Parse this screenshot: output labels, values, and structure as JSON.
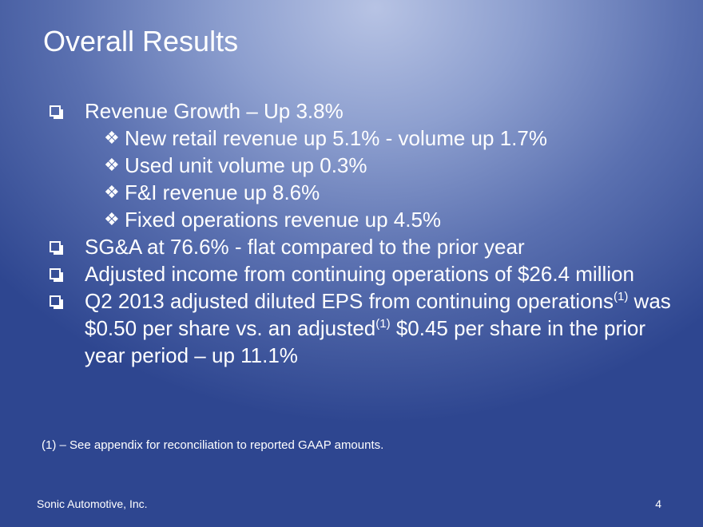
{
  "slide": {
    "title": "Overall Results",
    "bullets": {
      "revenue": "Revenue Growth – Up 3.8%",
      "sub_new_retail": "New retail revenue up 5.1% - volume up 1.7%",
      "sub_used_unit": "Used unit volume up 0.3%",
      "sub_fi": "F&I revenue up 8.6%",
      "sub_fixed_ops": "Fixed operations revenue up 4.5%",
      "sga": "SG&A at 76.6% - flat compared to the prior year",
      "adjusted_income": "Adjusted income from continuing operations of $26.4 million",
      "eps_part1": "Q2 2013 adjusted diluted EPS from continuing operations",
      "eps_sup1": "(1)",
      "eps_part2": " was $0.50 per share vs. an adjusted",
      "eps_sup2": "(1)",
      "eps_part3": " $0.45 per share in the prior year period – up 11.1%"
    },
    "footnote": "(1) – See appendix for reconciliation to reported GAAP amounts.",
    "footer": {
      "company": "Sonic Automotive, Inc.",
      "page_number": "4"
    },
    "icons": {
      "main_bullet": "hollow-square-bullet-icon",
      "sub_bullet": "four-diamond-bullet-icon"
    }
  }
}
